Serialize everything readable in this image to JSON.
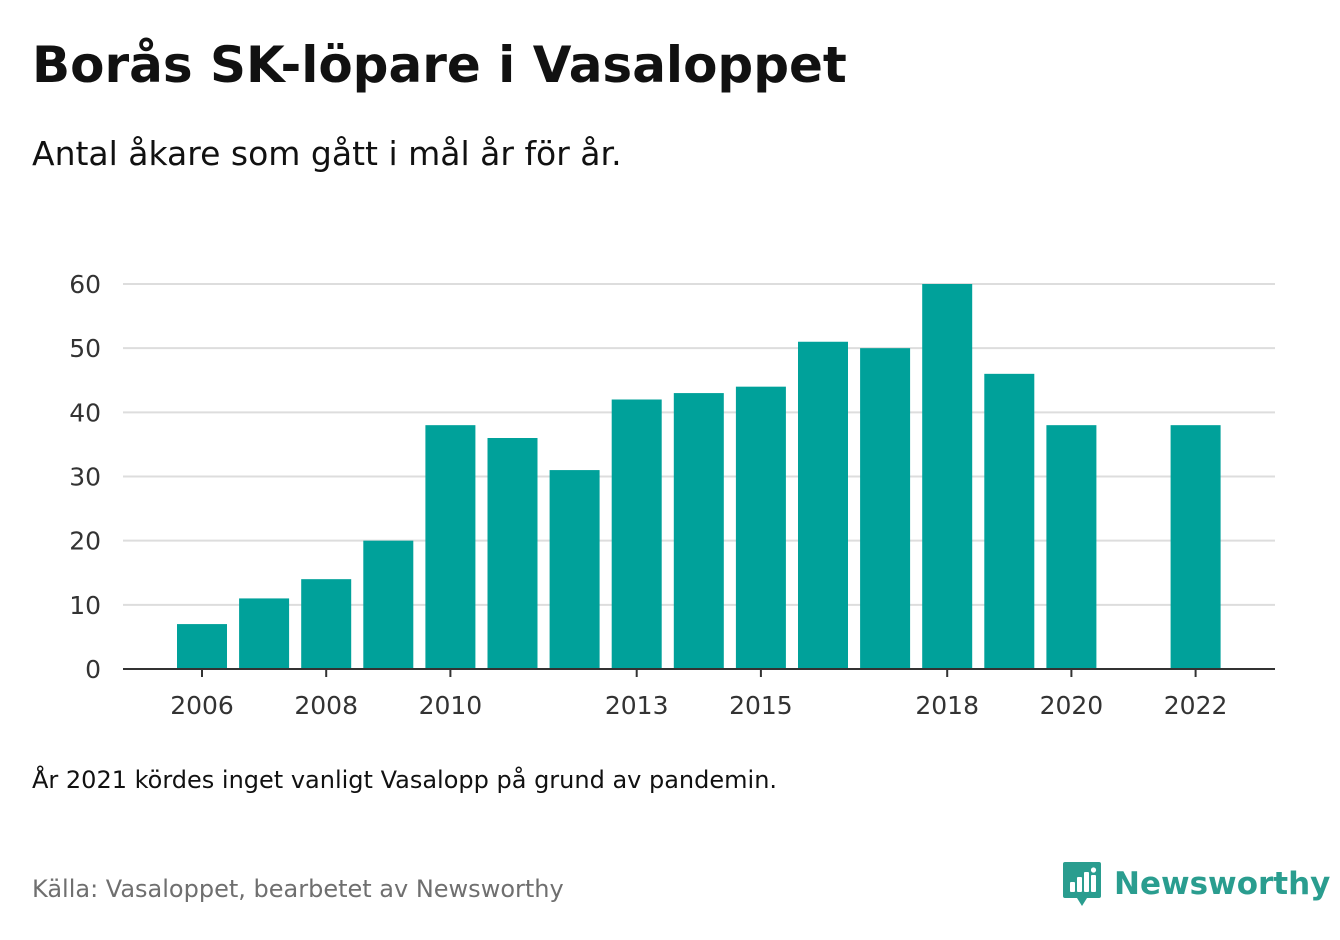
{
  "header": {
    "title": "Borås SK-löpare i Vasaloppet",
    "subtitle": "Antal åkare som gått i mål år för år."
  },
  "footer": {
    "note": "År 2021 kördes inget vanligt Vasalopp på grund av pandemin.",
    "source": "Källa: Vasaloppet, bearbetet av Newsworthy",
    "brand_name": "Newsworthy",
    "brand_color": "#2a9d8f",
    "brand_icon": "newsworthy-logo-icon"
  },
  "colors": {
    "bar": "#00a19a",
    "grid": "#dddddd",
    "axis": "#333333",
    "text": "#111111",
    "muted": "#6f6f6f"
  },
  "chart_data": {
    "type": "bar",
    "categories": [
      2006,
      2007,
      2008,
      2009,
      2010,
      2011,
      2012,
      2013,
      2014,
      2015,
      2016,
      2017,
      2018,
      2019,
      2020,
      2021,
      2022
    ],
    "values": [
      7,
      11,
      14,
      20,
      38,
      36,
      31,
      42,
      43,
      44,
      51,
      50,
      60,
      46,
      38,
      null,
      38
    ],
    "x_tick_labels": [
      "2006",
      "2008",
      "2010",
      "2013",
      "2015",
      "2018",
      "2020",
      "2022"
    ],
    "y_ticks": [
      0,
      10,
      20,
      30,
      40,
      50,
      60
    ],
    "ylim": [
      0,
      60
    ],
    "grid": true,
    "legend": "none",
    "xlabel": "",
    "ylabel": ""
  }
}
